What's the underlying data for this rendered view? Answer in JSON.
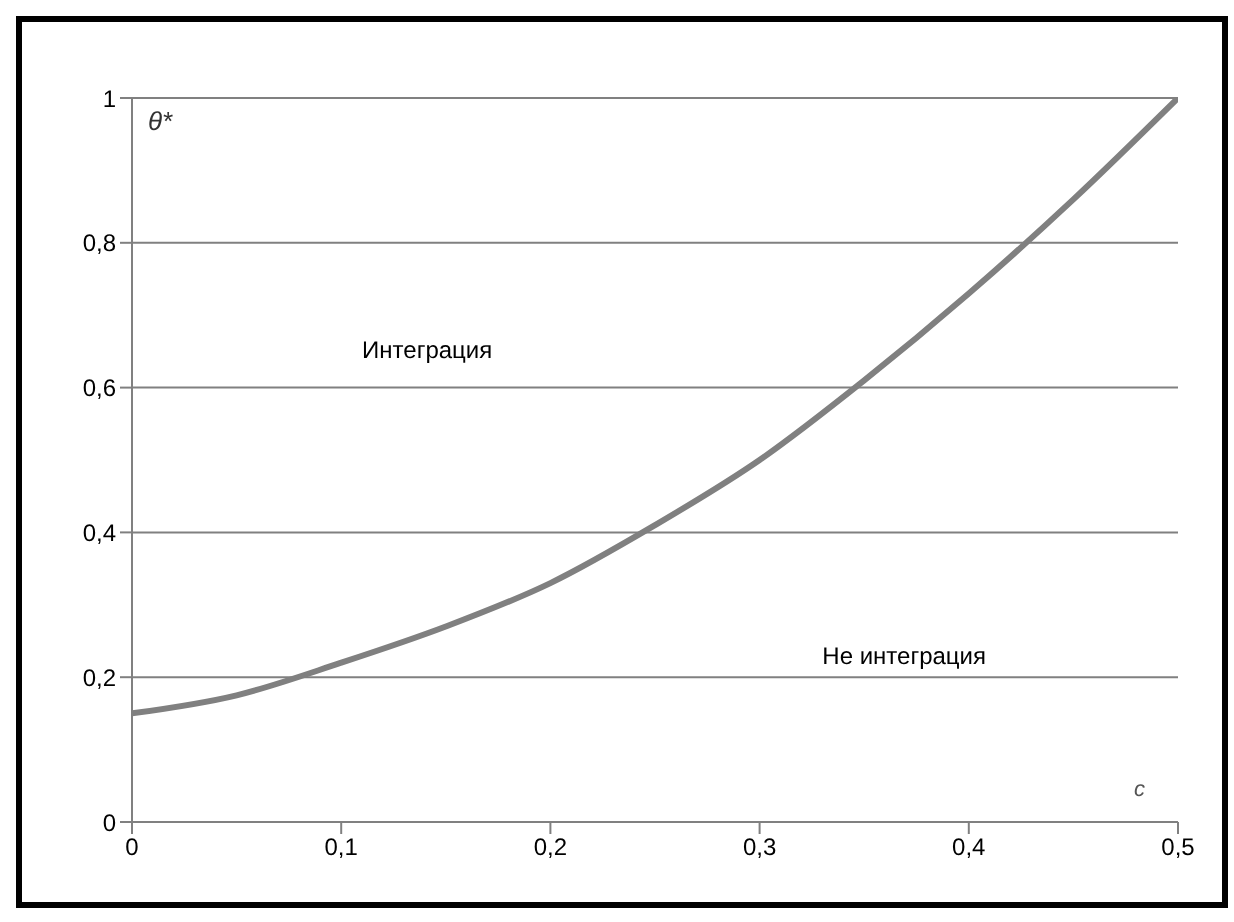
{
  "chart_data": {
    "type": "line",
    "xlabel": "c",
    "ylabel": "θ*",
    "annotations": [
      "Интеграция",
      "Не интеграция"
    ],
    "x": [
      0,
      0.05,
      0.1,
      0.15,
      0.2,
      0.25,
      0.3,
      0.35,
      0.4,
      0.45,
      0.5
    ],
    "series": [
      {
        "color": "#808080",
        "values": [
          0.15,
          0.175,
          0.22,
          0.27,
          0.33,
          0.41,
          0.5,
          0.61,
          0.73,
          0.86,
          1.0
        ]
      }
    ],
    "xlim": [
      0,
      0.5
    ],
    "ylim": [
      0,
      1
    ],
    "xticks": [
      0,
      {
        "value": 0.1,
        "label": "0,1"
      },
      {
        "value": 0.2,
        "label": "0,2"
      },
      {
        "value": 0.3,
        "label": "0,3"
      },
      {
        "value": 0.4,
        "label": "0,4"
      },
      {
        "value": 0.5,
        "label": "0,5"
      }
    ],
    "yticks": [
      0,
      {
        "value": 0.2,
        "label": "0,2"
      },
      {
        "value": 0.4,
        "label": "0,4"
      },
      {
        "value": 0.6,
        "label": "0,6"
      },
      {
        "value": 0.8,
        "label": "0,8"
      },
      1
    ],
    "grid": "y",
    "marker": "none",
    "line_style": "solid"
  }
}
